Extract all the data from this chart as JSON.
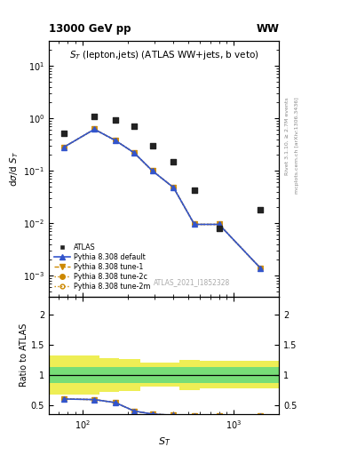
{
  "title_top": "13000 GeV pp",
  "title_right": "WW",
  "plot_title": "$S_T$ (lepton,jets) (ATLAS WW+jets, b veto)",
  "xlabel": "$S_T$",
  "ylabel_main": "d$\\sigma$/d $S_T$",
  "ylabel_ratio": "Ratio to ATLAS",
  "right_label1": "Rivet 3.1.10, ≥ 2.7M events",
  "right_label2": "mcplots.cern.ch [arXiv:1306.3436]",
  "watermark": "ATLAS_2021_I1852328",
  "atlas_x_main": [
    75,
    120,
    165,
    220,
    290,
    400,
    550,
    800,
    1500
  ],
  "atlas_y_main": [
    0.52,
    1.1,
    0.95,
    0.72,
    0.3,
    0.15,
    0.043,
    0.008,
    0.018
  ],
  "pythia_x_main": [
    75,
    120,
    165,
    220,
    290,
    400,
    550,
    800,
    1500
  ],
  "py_default_main": [
    0.28,
    0.62,
    0.38,
    0.22,
    0.1,
    0.048,
    0.0095,
    0.0095,
    0.0014
  ],
  "py_tune1_main": [
    0.28,
    0.62,
    0.38,
    0.22,
    0.1,
    0.048,
    0.0095,
    0.0095,
    0.0014
  ],
  "py_tune2c_main": [
    0.28,
    0.62,
    0.38,
    0.22,
    0.1,
    0.048,
    0.0095,
    0.0095,
    0.0014
  ],
  "py_tune2m_main": [
    0.28,
    0.62,
    0.38,
    0.22,
    0.1,
    0.048,
    0.0095,
    0.0095,
    0.0014
  ],
  "ratio_x": [
    75,
    120,
    165,
    220,
    290,
    400,
    550,
    800,
    1500
  ],
  "ratio_default": [
    0.6,
    0.59,
    0.54,
    0.4,
    0.35,
    0.33,
    0.32,
    0.32,
    0.32
  ],
  "ratio_tune1": [
    0.6,
    0.59,
    0.54,
    0.4,
    0.35,
    0.33,
    0.32,
    0.32,
    0.32
  ],
  "ratio_tune2c": [
    0.6,
    0.59,
    0.54,
    0.4,
    0.35,
    0.33,
    0.32,
    0.32,
    0.32
  ],
  "ratio_tune2m": [
    0.6,
    0.59,
    0.54,
    0.4,
    0.35,
    0.33,
    0.32,
    0.32,
    0.32
  ],
  "band_x_edges": [
    60,
    95,
    130,
    175,
    240,
    325,
    440,
    600,
    820,
    1120,
    2000
  ],
  "band_green_lo": [
    0.87,
    0.87,
    0.87,
    0.87,
    0.87,
    0.87,
    0.87,
    0.87,
    0.87,
    0.87
  ],
  "band_green_hi": [
    1.13,
    1.13,
    1.13,
    1.13,
    1.13,
    1.13,
    1.13,
    1.13,
    1.13,
    1.13
  ],
  "band_yellow_lo": [
    0.68,
    0.68,
    0.72,
    0.73,
    0.8,
    0.8,
    0.75,
    0.77,
    0.77,
    0.77
  ],
  "band_yellow_hi": [
    1.32,
    1.32,
    1.28,
    1.27,
    1.2,
    1.2,
    1.25,
    1.23,
    1.23,
    1.23
  ],
  "color_atlas": "#222222",
  "color_default": "#3355cc",
  "color_tune1": "#cc8800",
  "color_tune2c": "#cc8800",
  "color_tune2m": "#cc8800",
  "color_green": "#77dd77",
  "color_yellow": "#eeee55",
  "xlim": [
    60,
    2000
  ],
  "ylim_main": [
    0.0004,
    30
  ],
  "ylim_ratio": [
    0.35,
    2.3
  ],
  "yticks_ratio": [
    0.5,
    1.0,
    1.5,
    2.0
  ]
}
